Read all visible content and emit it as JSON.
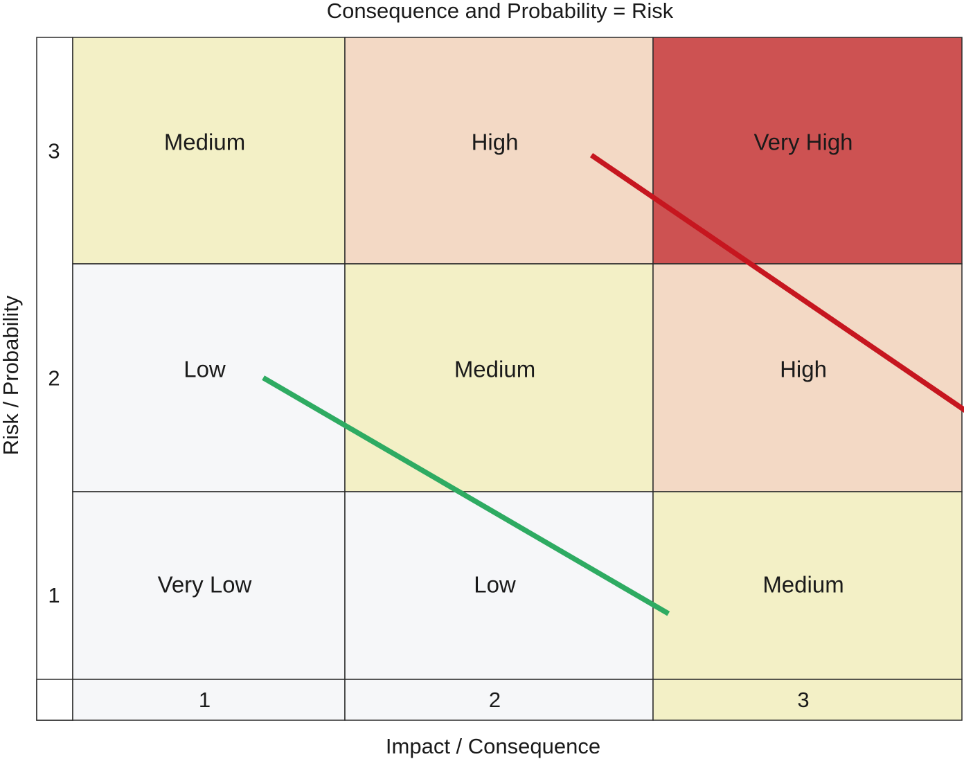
{
  "chart_data": {
    "type": "heatmap",
    "title": "Consequence and Probability = Risk",
    "xlabel": "Impact / Consequence",
    "ylabel": "Risk / Probability",
    "x_ticks": [
      "1",
      "2",
      "3"
    ],
    "y_ticks": [
      "3",
      "2",
      "1"
    ],
    "cells": [
      [
        {
          "label": "Medium",
          "color": "#f3f0c6"
        },
        {
          "label": "High",
          "color": "#f3d9c5"
        },
        {
          "label": "Very High",
          "color": "#cd5252"
        }
      ],
      [
        {
          "label": "Low",
          "color": "#f6f7f9"
        },
        {
          "label": "Medium",
          "color": "#f3f0c6"
        },
        {
          "label": "High",
          "color": "#f3d9c5"
        }
      ],
      [
        {
          "label": "Very Low",
          "color": "#f6f7f9"
        },
        {
          "label": "Low",
          "color": "#f6f7f9"
        },
        {
          "label": "Medium",
          "color": "#f3f0c6"
        }
      ]
    ],
    "x_tick_colors": [
      "#f6f7f9",
      "#f6f7f9",
      "#f3f0c6"
    ],
    "lines": [
      {
        "color": "#2eab62",
        "from": [
          1.2,
          2.0
        ],
        "to": [
          2.55,
          0.85
        ]
      },
      {
        "color": "#c6161f",
        "from": [
          2.3,
          2.98
        ],
        "to": [
          3.55,
          1.82
        ]
      }
    ]
  }
}
